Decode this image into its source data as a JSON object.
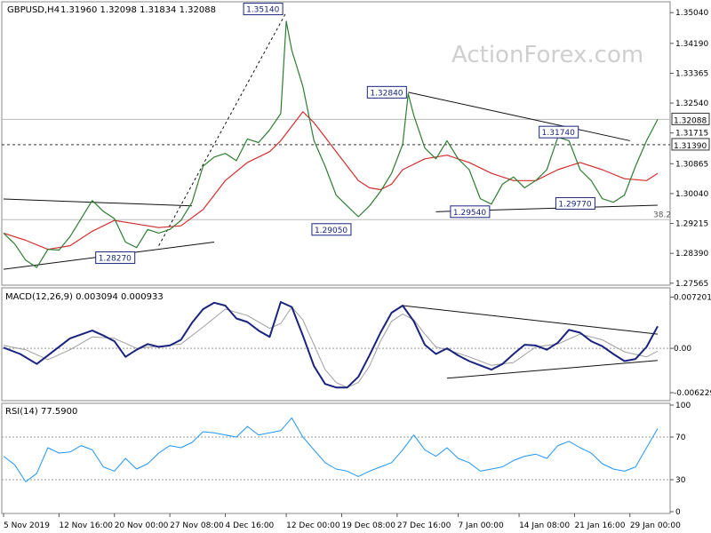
{
  "header": {
    "symbol": "GBPUSD,H4",
    "ohlc": "1.31960 1.32098 1.31834 1.32088"
  },
  "watermark": "ActionForex.com",
  "colors": {
    "price": "#2e7d32",
    "ma": "#d32f2f",
    "macd": "#1a237e",
    "signal": "#9e9e9e",
    "rsi": "#2196f3",
    "trend": "#111111",
    "box": "#1a237e",
    "grid": "#c8c8c8"
  },
  "chart_data": [
    {
      "type": "line",
      "panel": "price",
      "ylim": [
        1.2756,
        1.3529
      ],
      "y_ticks": [
        "1.35040",
        "1.34190",
        "1.33365",
        "1.32540",
        "1.31715",
        "1.30865",
        "1.30040",
        "1.29215",
        "1.28390",
        "1.27565"
      ],
      "x_ticks": [
        "5 Nov 2019",
        "12 Nov 16:00",
        "20 Nov 00:00",
        "27 Nov 08:00",
        "4 Dec 16:00",
        "12 Dec 00:00",
        "19 Dec 08:00",
        "27 Dec 16:00",
        "7 Jan 00:00",
        "14 Jan 08:00",
        "21 Jan 16:00",
        "29 Jan 00:00"
      ],
      "x_index_range": [
        0,
        118
      ],
      "x_tick_index": [
        0,
        10,
        20,
        30,
        40,
        51,
        61,
        71,
        82,
        93,
        103,
        113
      ],
      "series": [
        {
          "name": "price",
          "x": [
            0,
            2,
            4,
            6,
            8,
            10,
            12,
            14,
            16,
            18,
            20,
            22,
            24,
            26,
            28,
            30,
            32,
            34,
            36,
            38,
            40,
            42,
            44,
            46,
            48,
            50,
            51,
            52,
            54,
            56,
            58,
            60,
            62,
            64,
            66,
            68,
            70,
            72,
            73,
            74,
            76,
            78,
            80,
            82,
            84,
            86,
            88,
            90,
            92,
            94,
            96,
            98,
            100,
            102,
            104,
            106,
            108,
            110,
            112,
            114,
            116,
            118
          ],
          "values": [
            1.2895,
            1.2865,
            1.282,
            1.28,
            1.285,
            1.2848,
            1.2885,
            1.2935,
            1.2985,
            1.2955,
            1.2935,
            1.287,
            1.2855,
            1.2905,
            1.2895,
            1.2905,
            1.293,
            1.298,
            1.308,
            1.3105,
            1.3115,
            1.3095,
            1.3155,
            1.3145,
            1.318,
            1.3225,
            1.348,
            1.34,
            1.33,
            1.315,
            1.308,
            1.3,
            1.297,
            1.294,
            1.297,
            1.301,
            1.306,
            1.314,
            1.328,
            1.322,
            1.313,
            1.31,
            1.315,
            1.31,
            1.307,
            1.299,
            1.2975,
            1.303,
            1.305,
            1.302,
            1.304,
            1.307,
            1.316,
            1.315,
            1.307,
            1.304,
            1.299,
            1.298,
            1.3,
            1.308,
            1.315,
            1.3209
          ]
        },
        {
          "name": "ma",
          "x": [
            0,
            4,
            8,
            12,
            16,
            20,
            24,
            28,
            32,
            36,
            40,
            44,
            48,
            50,
            52,
            54,
            56,
            58,
            60,
            62,
            64,
            66,
            68,
            70,
            72,
            76,
            80,
            84,
            88,
            92,
            96,
            100,
            104,
            108,
            112,
            116,
            118
          ],
          "values": [
            1.2895,
            1.2875,
            1.285,
            1.286,
            1.29,
            1.293,
            1.292,
            1.291,
            1.2915,
            1.296,
            1.304,
            1.309,
            1.312,
            1.315,
            1.319,
            1.323,
            1.32,
            1.316,
            1.312,
            1.308,
            1.304,
            1.302,
            1.3015,
            1.303,
            1.307,
            1.31,
            1.311,
            1.309,
            1.306,
            1.304,
            1.304,
            1.307,
            1.309,
            1.307,
            1.3045,
            1.304,
            1.306
          ]
        }
      ],
      "levels": [
        {
          "value": 1.3209,
          "kind": "solid",
          "label": "1.32088"
        },
        {
          "value": 1.3139,
          "kind": "dashed",
          "label": "1.31390"
        },
        {
          "value": 1.2932,
          "kind": "solid",
          "label": "38.2"
        }
      ],
      "trendlines": [
        {
          "x": [
            0,
            34
          ],
          "y": [
            1.2989,
            1.297
          ],
          "style": "solid"
        },
        {
          "x": [
            0,
            38
          ],
          "y": [
            1.2795,
            1.287
          ],
          "style": "solid"
        },
        {
          "x": [
            28,
            51
          ],
          "y": [
            1.286,
            1.3505
          ],
          "style": "dashed"
        },
        {
          "x": [
            73,
            113
          ],
          "y": [
            1.3284,
            1.315
          ],
          "style": "solid"
        },
        {
          "x": [
            78,
            118
          ],
          "y": [
            1.2954,
            1.2972
          ],
          "style": "solid"
        }
      ],
      "annotations": [
        {
          "label": "1.35140",
          "x": 51,
          "y": 1.3514
        },
        {
          "label": "1.32840",
          "x": 73,
          "y": 1.3284
        },
        {
          "label": "1.31740",
          "x": 104,
          "y": 1.3174
        },
        {
          "label": "1.29540",
          "x": 88,
          "y": 1.2954
        },
        {
          "label": "1.29770",
          "x": 107,
          "y": 1.2977
        },
        {
          "label": "1.29050",
          "x": 63,
          "y": 1.2905
        },
        {
          "label": "1.28270",
          "x": 24,
          "y": 1.2827
        }
      ]
    },
    {
      "type": "line",
      "panel": "macd",
      "title": "MACD(12,26,9) 0.003094 0.000933",
      "ylim": [
        -0.0071,
        0.008
      ],
      "y_ticks": [
        "0.007201",
        "0.00",
        "-0.006229"
      ],
      "zero_label": "0.00",
      "series": [
        {
          "name": "macd",
          "x": [
            0,
            3,
            6,
            9,
            12,
            16,
            18,
            20,
            22,
            24,
            26,
            28,
            30,
            32,
            34,
            36,
            38,
            40,
            42,
            44,
            46,
            48,
            50,
            52,
            54,
            56,
            58,
            60,
            62,
            64,
            66,
            68,
            70,
            72,
            74,
            76,
            78,
            80,
            82,
            84,
            86,
            88,
            90,
            92,
            94,
            96,
            98,
            100,
            102,
            104,
            106,
            108,
            110,
            112,
            114,
            116,
            118
          ],
          "values": [
            0.0001,
            -0.0008,
            -0.0022,
            -0.0004,
            0.0014,
            0.0025,
            0.0018,
            0.001,
            -0.0012,
            -0.0002,
            0.0006,
            0.0002,
            0.0004,
            0.0012,
            0.0036,
            0.0055,
            0.0064,
            0.006,
            0.0042,
            0.0037,
            0.0025,
            0.0016,
            0.0065,
            0.0058,
            0.0018,
            -0.0025,
            -0.005,
            -0.0055,
            -0.0055,
            -0.004,
            -0.001,
            0.0022,
            0.005,
            0.006,
            0.0038,
            0.0005,
            -0.0008,
            0.0,
            -0.001,
            -0.0018,
            -0.0024,
            -0.003,
            -0.0022,
            -0.0008,
            0.0005,
            0.0004,
            -0.0002,
            0.0008,
            0.0026,
            0.0022,
            0.001,
            0.0003,
            -0.0008,
            -0.0018,
            -0.0015,
            0.0002,
            0.0031
          ]
        },
        {
          "name": "signal",
          "x": [
            0,
            4,
            8,
            12,
            16,
            20,
            24,
            28,
            32,
            36,
            40,
            44,
            48,
            50,
            52,
            54,
            56,
            58,
            60,
            62,
            64,
            66,
            68,
            70,
            72,
            74,
            76,
            78,
            80,
            84,
            88,
            92,
            96,
            100,
            104,
            108,
            112,
            116,
            118
          ],
          "values": [
            0.0004,
            -0.0002,
            -0.0016,
            -0.0002,
            0.0016,
            0.0014,
            0.0,
            0.0003,
            0.0006,
            0.003,
            0.0055,
            0.0046,
            0.0028,
            0.0035,
            0.0058,
            0.004,
            0.0005,
            -0.003,
            -0.0048,
            -0.0055,
            -0.0048,
            -0.0025,
            0.001,
            0.0038,
            0.0048,
            0.004,
            0.002,
            0.0002,
            -0.0002,
            -0.0012,
            -0.0024,
            -0.002,
            0.0002,
            0.0006,
            0.002,
            0.0012,
            -0.0005,
            -0.0012,
            -0.0004
          ]
        }
      ],
      "trendlines": [
        {
          "x": [
            72,
            118
          ],
          "y": [
            0.006,
            0.002
          ]
        },
        {
          "x": [
            80,
            118
          ],
          "y": [
            -0.0042,
            -0.0017
          ]
        }
      ]
    },
    {
      "type": "line",
      "panel": "rsi",
      "title": "RSI(14) 77.5900",
      "ylim": [
        0,
        100
      ],
      "y_ticks": [
        "100",
        "70",
        "30",
        "0"
      ],
      "levels": [
        70,
        30
      ],
      "series": [
        {
          "name": "rsi",
          "x": [
            0,
            2,
            4,
            6,
            8,
            10,
            12,
            14,
            16,
            18,
            20,
            22,
            24,
            26,
            28,
            30,
            32,
            34,
            36,
            38,
            40,
            42,
            44,
            46,
            48,
            50,
            52,
            54,
            56,
            58,
            60,
            62,
            64,
            66,
            68,
            70,
            72,
            74,
            76,
            78,
            80,
            82,
            84,
            86,
            88,
            90,
            92,
            94,
            96,
            98,
            100,
            102,
            104,
            106,
            108,
            110,
            112,
            114,
            116,
            118
          ],
          "values": [
            52,
            44,
            28,
            36,
            60,
            55,
            56,
            62,
            58,
            42,
            38,
            50,
            40,
            45,
            55,
            62,
            60,
            65,
            75,
            74,
            72,
            70,
            80,
            72,
            74,
            76,
            88,
            70,
            58,
            46,
            40,
            38,
            33,
            38,
            42,
            46,
            58,
            72,
            58,
            52,
            60,
            50,
            46,
            38,
            40,
            42,
            48,
            52,
            54,
            50,
            62,
            66,
            60,
            55,
            45,
            40,
            38,
            42,
            60,
            78
          ]
        }
      ]
    }
  ]
}
